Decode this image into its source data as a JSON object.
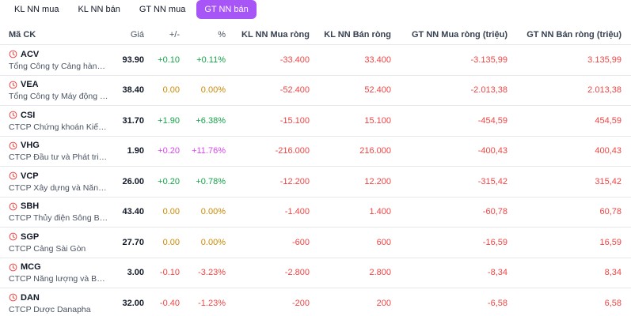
{
  "tabs": [
    "KL NN mua",
    "KL NN bán",
    "GT NN mua",
    "GT NN bán"
  ],
  "active_tab": 3,
  "headers": {
    "code": "Mã CK",
    "price": "Giá",
    "change": "+/-",
    "pct": "%",
    "kl_mua": "KL NN Mua ròng",
    "kl_ban": "KL NN Bán ròng",
    "gt_mua": "GT NN Mua ròng (triệu)",
    "gt_ban": "GT NN Bán ròng (triệu)"
  },
  "colors": {
    "accent": "#a855f7",
    "up": "#16a34a",
    "reference": "#ca8a04",
    "down": "#ef4444",
    "ceiling": "#d946ef"
  },
  "icons": {
    "row_icon": "clock-icon"
  },
  "rows": [
    {
      "symbol": "ACV",
      "name": "Tổng Công ty Cảng hàng k...",
      "price": "93.90",
      "change": "+0.10",
      "pct": "+0.11%",
      "status": "up",
      "kl_mua": "-33.400",
      "kl_ban": "33.400",
      "gt_mua": "-3.135,99",
      "gt_ban": "3.135,99"
    },
    {
      "symbol": "VEA",
      "name": "Tổng Công ty Máy động lực...",
      "price": "38.40",
      "change": "0.00",
      "pct": "0.00%",
      "status": "ref",
      "kl_mua": "-52.400",
      "kl_ban": "52.400",
      "gt_mua": "-2.013,38",
      "gt_ban": "2.013,38"
    },
    {
      "symbol": "CSI",
      "name": "CTCP Chứng khoán Kiến T...",
      "price": "31.70",
      "change": "+1.90",
      "pct": "+6.38%",
      "status": "up",
      "kl_mua": "-15.100",
      "kl_ban": "15.100",
      "gt_mua": "-454,59",
      "gt_ban": "454,59"
    },
    {
      "symbol": "VHG",
      "name": "CTCP Đầu tư và Phát triển ...",
      "price": "1.90",
      "change": "+0.20",
      "pct": "+11.76%",
      "status": "ceil",
      "kl_mua": "-216.000",
      "kl_ban": "216.000",
      "gt_mua": "-400,43",
      "gt_ban": "400,43"
    },
    {
      "symbol": "VCP",
      "name": "CTCP Xây dựng và Năng lư...",
      "price": "26.00",
      "change": "+0.20",
      "pct": "+0.78%",
      "status": "up",
      "kl_mua": "-12.200",
      "kl_ban": "12.200",
      "gt_mua": "-315,42",
      "gt_ban": "315,42"
    },
    {
      "symbol": "SBH",
      "name": "CTCP Thủy điện Sông Ba Hạ",
      "price": "43.40",
      "change": "0.00",
      "pct": "0.00%",
      "status": "ref",
      "kl_mua": "-1.400",
      "kl_ban": "1.400",
      "gt_mua": "-60,78",
      "gt_ban": "60,78"
    },
    {
      "symbol": "SGP",
      "name": "CTCP Cảng Sài Gòn",
      "price": "27.70",
      "change": "0.00",
      "pct": "0.00%",
      "status": "ref",
      "kl_mua": "-600",
      "kl_ban": "600",
      "gt_mua": "-16,59",
      "gt_ban": "16,59"
    },
    {
      "symbol": "MCG",
      "name": "CTCP Năng lượng và Bất đ...",
      "price": "3.00",
      "change": "-0.10",
      "pct": "-3.23%",
      "status": "down",
      "kl_mua": "-2.800",
      "kl_ban": "2.800",
      "gt_mua": "-8,34",
      "gt_ban": "8,34"
    },
    {
      "symbol": "DAN",
      "name": "CTCP Dược Danapha",
      "price": "32.00",
      "change": "-0.40",
      "pct": "-1.23%",
      "status": "down",
      "kl_mua": "-200",
      "kl_ban": "200",
      "gt_mua": "-6,58",
      "gt_ban": "6,58"
    }
  ]
}
